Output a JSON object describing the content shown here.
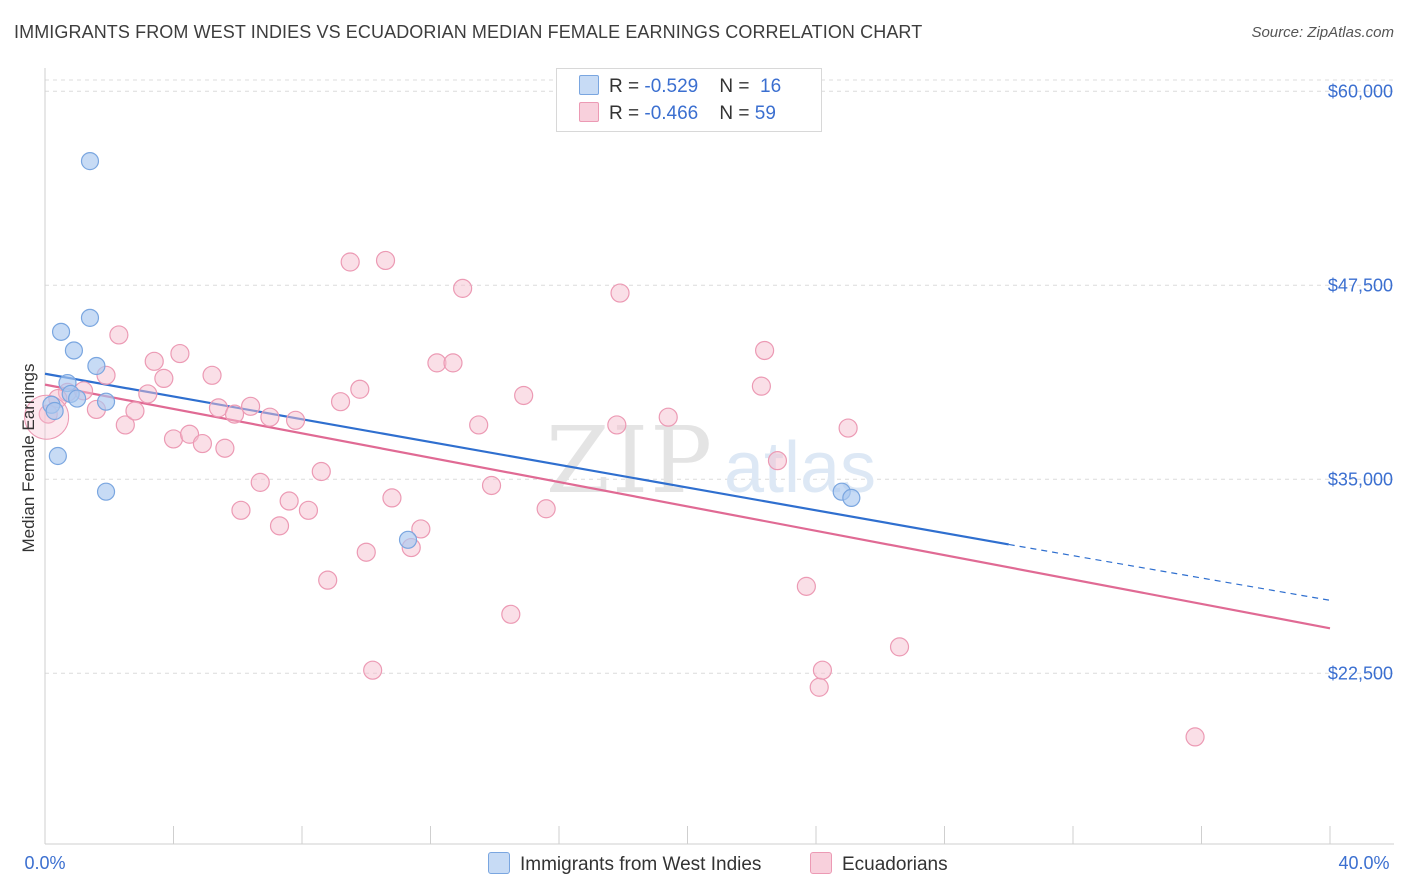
{
  "title": "IMMIGRANTS FROM WEST INDIES VS ECUADORIAN MEDIAN FEMALE EARNINGS CORRELATION CHART",
  "source": "Source: ZipAtlas.com",
  "watermark": {
    "zip": "ZIP",
    "atlas": "atlas"
  },
  "legend": {
    "series1": {
      "r_label": "R = ",
      "r_value": "-0.529",
      "n_label": "N = ",
      "n_value": "16"
    },
    "series2": {
      "r_label": "R = ",
      "r_value": "-0.466",
      "n_label": "N = ",
      "n_value": "59"
    }
  },
  "colors": {
    "series1_fill": "#a9c8f0",
    "series1_stroke": "#7aa6e0",
    "series1_line": "#2f6fcf",
    "series2_fill": "#f6bfd0",
    "series2_stroke": "#ec9ab4",
    "series2_line": "#e06a94",
    "axis_label": "#3b6fd0",
    "grid": "#dcdcdc"
  },
  "chart_data": {
    "type": "scatter",
    "title": "IMMIGRANTS FROM WEST INDIES VS ECUADORIAN MEDIAN FEMALE EARNINGS CORRELATION CHART",
    "xlabel": "",
    "ylabel": "Median Female Earnings",
    "xlim": [
      0,
      40
    ],
    "ylim": [
      11500,
      61500
    ],
    "x_tick_labels": [
      "0.0%",
      "40.0%"
    ],
    "y_ticks": [
      22500,
      35000,
      47500,
      60000
    ],
    "y_tick_labels": [
      "$22,500",
      "$35,000",
      "$47,500",
      "$60,000"
    ],
    "series": [
      {
        "name": "Immigrants from West Indies",
        "points": [
          [
            0.2,
            39800
          ],
          [
            0.3,
            39400
          ],
          [
            0.4,
            36500
          ],
          [
            0.5,
            44500
          ],
          [
            0.7,
            41200
          ],
          [
            0.8,
            40500
          ],
          [
            0.9,
            43300
          ],
          [
            1.0,
            40200
          ],
          [
            1.4,
            55500
          ],
          [
            1.4,
            45400
          ],
          [
            1.6,
            42300
          ],
          [
            1.9,
            34200
          ],
          [
            1.9,
            40000
          ],
          [
            11.3,
            31100
          ],
          [
            24.8,
            34200
          ],
          [
            25.1,
            33800
          ]
        ],
        "trend": {
          "x": [
            0,
            30
          ],
          "y": [
            41800,
            30800
          ]
        },
        "trend_dashed": {
          "x": [
            30,
            40
          ],
          "y": [
            30800,
            27200
          ]
        }
      },
      {
        "name": "Ecuadorians",
        "points": [
          [
            0.1,
            39200
          ],
          [
            0.7,
            40600
          ],
          [
            1.2,
            40700
          ],
          [
            1.6,
            39500
          ],
          [
            1.9,
            41700
          ],
          [
            2.3,
            44300
          ],
          [
            2.5,
            38500
          ],
          [
            2.8,
            39400
          ],
          [
            3.2,
            40500
          ],
          [
            3.4,
            42600
          ],
          [
            3.7,
            41500
          ],
          [
            4.0,
            37600
          ],
          [
            4.2,
            43100
          ],
          [
            4.5,
            37900
          ],
          [
            4.9,
            37300
          ],
          [
            5.2,
            41700
          ],
          [
            5.4,
            39600
          ],
          [
            5.9,
            39200
          ],
          [
            6.1,
            33000
          ],
          [
            6.4,
            39700
          ],
          [
            6.7,
            34800
          ],
          [
            7.0,
            39000
          ],
          [
            7.3,
            32000
          ],
          [
            7.6,
            33600
          ],
          [
            7.8,
            38800
          ],
          [
            8.2,
            33000
          ],
          [
            8.6,
            35500
          ],
          [
            8.8,
            28500
          ],
          [
            9.2,
            40000
          ],
          [
            9.5,
            49000
          ],
          [
            9.8,
            40800
          ],
          [
            10.0,
            30300
          ],
          [
            10.2,
            22700
          ],
          [
            10.6,
            49100
          ],
          [
            10.8,
            33800
          ],
          [
            11.4,
            30600
          ],
          [
            11.7,
            31800
          ],
          [
            12.2,
            42500
          ],
          [
            12.7,
            42500
          ],
          [
            13.0,
            47300
          ],
          [
            13.5,
            38500
          ],
          [
            13.9,
            34600
          ],
          [
            14.5,
            26300
          ],
          [
            14.9,
            40400
          ],
          [
            15.6,
            33100
          ],
          [
            17.8,
            38500
          ],
          [
            17.9,
            47000
          ],
          [
            19.4,
            39000
          ],
          [
            22.3,
            41000
          ],
          [
            22.4,
            43300
          ],
          [
            22.8,
            36200
          ],
          [
            23.7,
            28100
          ],
          [
            24.1,
            21600
          ],
          [
            24.2,
            22700
          ],
          [
            25.0,
            38300
          ],
          [
            26.6,
            24200
          ],
          [
            35.8,
            18400
          ],
          [
            0.4,
            40200
          ],
          [
            5.6,
            37000
          ]
        ],
        "trend": {
          "x": [
            0,
            40
          ],
          "y": [
            41100,
            25400
          ]
        }
      }
    ]
  },
  "bottom_legend": {
    "series1_label": "Immigrants from West Indies",
    "series2_label": "Ecuadorians"
  }
}
